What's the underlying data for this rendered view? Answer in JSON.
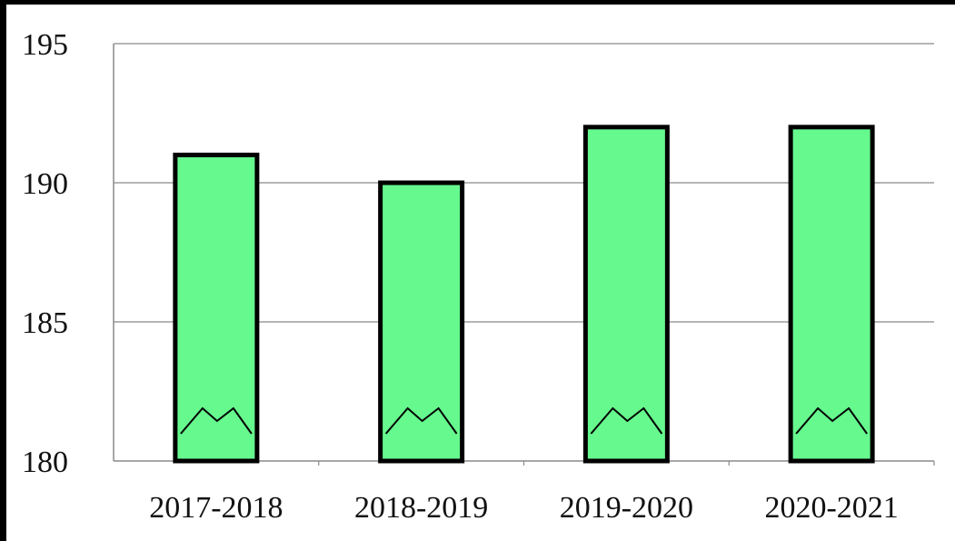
{
  "chart_data": {
    "type": "bar",
    "title": "",
    "xlabel": "",
    "ylabel": "",
    "categories": [
      "2017-2018",
      "2018-2019",
      "2019-2020",
      "2020-2021"
    ],
    "values": [
      191,
      190,
      192,
      192
    ],
    "ylim": [
      180,
      195
    ],
    "yticks": [
      "180",
      "185",
      "190",
      "195"
    ],
    "axis_break": "broken y-axis marks drawn inside each bar",
    "grid": true,
    "legend": "none",
    "colors": {
      "bar_fill": "#66f98e",
      "bar_stroke": "#000000",
      "grid": "#8a8a8a",
      "axis": "#8a8a8a"
    }
  }
}
